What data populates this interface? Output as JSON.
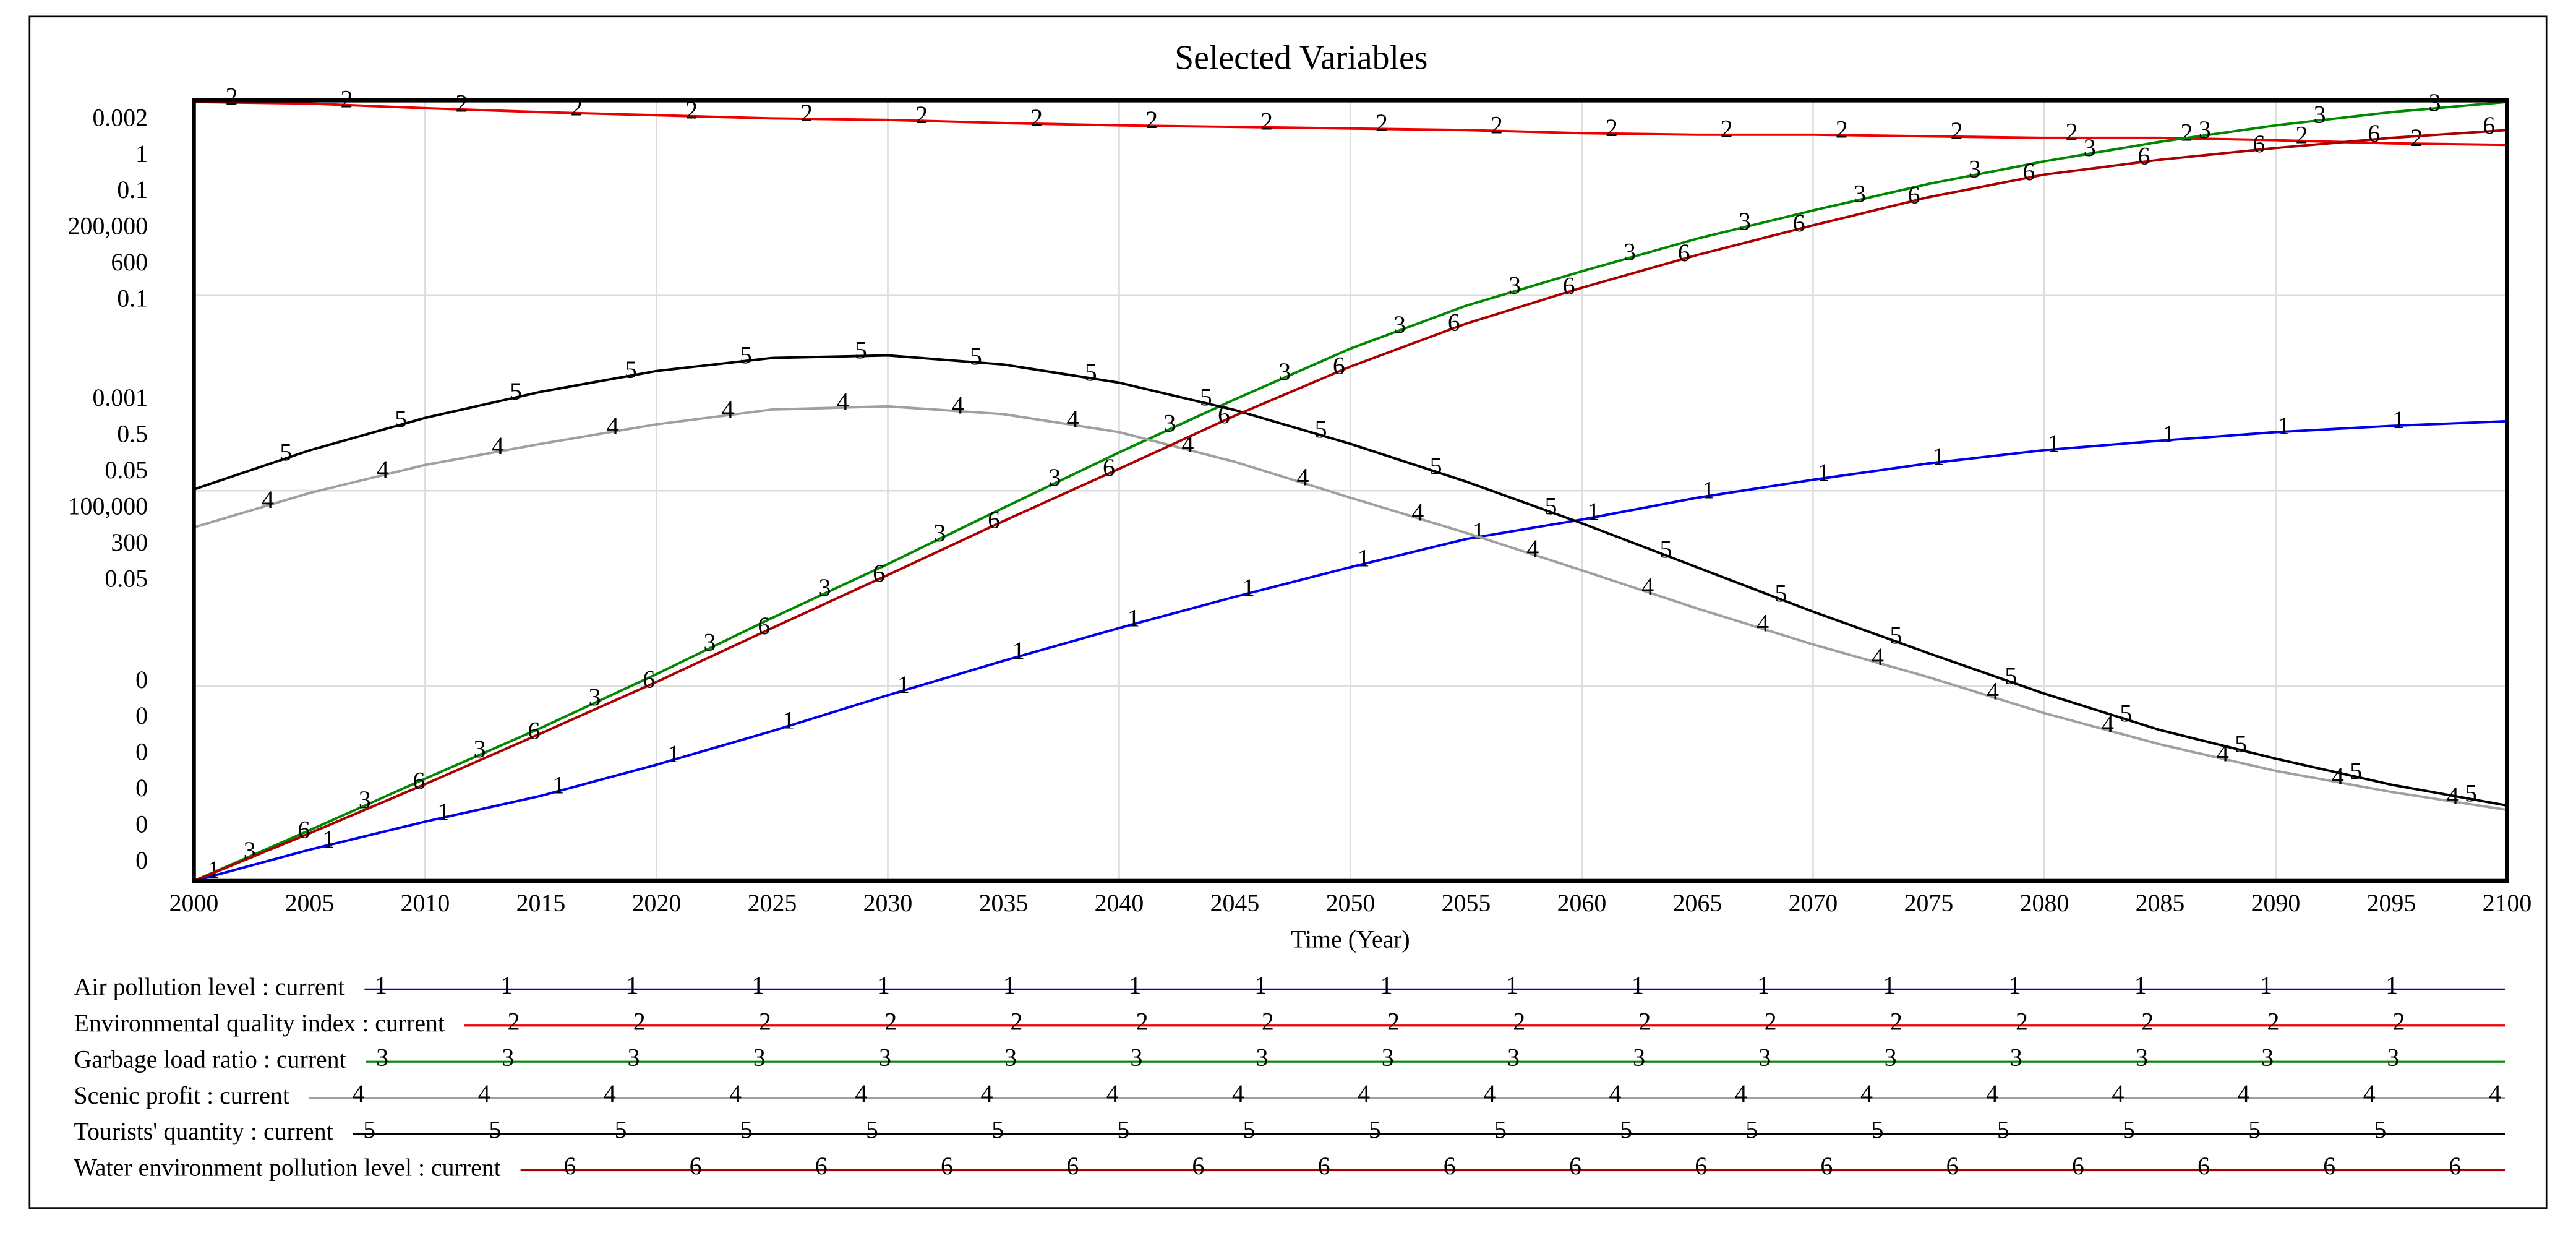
{
  "chart_data": {
    "type": "line",
    "title": "Selected Variables",
    "x_label": "Time (Year)",
    "x": [
      2000,
      2005,
      2010,
      2015,
      2020,
      2025,
      2030,
      2035,
      2040,
      2045,
      2050,
      2055,
      2060,
      2065,
      2070,
      2075,
      2080,
      2085,
      2090,
      2095,
      2100
    ],
    "xlim": [
      2000,
      2100
    ],
    "xticks": [
      2000,
      2005,
      2010,
      2015,
      2020,
      2025,
      2030,
      2035,
      2040,
      2045,
      2050,
      2055,
      2060,
      2065,
      2070,
      2075,
      2080,
      2085,
      2090,
      2095,
      2100
    ],
    "grid": true,
    "series": [
      {
        "name": "Air pollution level : current",
        "marker": "1",
        "color": "#0000ee",
        "ylim": [
          0,
          0.002
        ],
        "yticks": [
          0,
          0.001,
          0.002
        ],
        "values": [
          0,
          8e-05,
          0.000152,
          0.000218,
          0.000298,
          0.000384,
          0.000476,
          0.000564,
          0.000648,
          0.000728,
          0.000804,
          0.000876,
          0.000926,
          0.000982,
          0.001028,
          0.00107,
          0.001104,
          0.001128,
          0.00115,
          0.001166,
          0.001178
        ]
      },
      {
        "name": "Environmental quality index : current",
        "marker": "2",
        "color": "#ee0000",
        "ylim": [
          0,
          1
        ],
        "yticks": [
          0,
          0.5,
          1
        ],
        "values": [
          0.998,
          0.996,
          0.99,
          0.985,
          0.981,
          0.977,
          0.975,
          0.971,
          0.968,
          0.966,
          0.964,
          0.962,
          0.958,
          0.956,
          0.956,
          0.954,
          0.952,
          0.952,
          0.949,
          0.945,
          0.943
        ]
      },
      {
        "name": "Garbage load ratio : current",
        "marker": "3",
        "color": "#008800",
        "ylim": [
          0,
          0.1
        ],
        "yticks": [
          0,
          0.05,
          0.1
        ],
        "values": [
          0,
          0.0065,
          0.0131,
          0.0196,
          0.0265,
          0.0337,
          0.0406,
          0.0478,
          0.0549,
          0.0617,
          0.0682,
          0.0737,
          0.0781,
          0.0823,
          0.0859,
          0.0893,
          0.0922,
          0.0947,
          0.0968,
          0.0985,
          0.0998
        ]
      },
      {
        "name": "Scenic profit : current",
        "marker": "4",
        "color": "#a0a0a0",
        "ylim": [
          0,
          200000
        ],
        "yticks": [
          0,
          {
            "value": 100000,
            "label": "100,000"
          },
          {
            "value": 200000,
            "label": "200,000"
          }
        ],
        "values": [
          90600,
          99400,
          106600,
          112000,
          117000,
          120800,
          121600,
          119600,
          115000,
          107400,
          98200,
          89200,
          79600,
          69800,
          60600,
          52200,
          43000,
          35000,
          28200,
          22800,
          18200
        ]
      },
      {
        "name": "Tourists' quantity : current",
        "marker": "5",
        "color": "#000000",
        "ylim": [
          0,
          600
        ],
        "yticks": [
          0,
          300,
          600
        ],
        "values": [
          301,
          331,
          356,
          376,
          392,
          402,
          404,
          397,
          383,
          362,
          336,
          307,
          275,
          241,
          207,
          175,
          144,
          116,
          94,
          74,
          58
        ]
      },
      {
        "name": "Water environment pollution level : current",
        "marker": "6",
        "color": "#aa0000",
        "ylim": [
          0,
          0.1
        ],
        "yticks": [
          0,
          0.05,
          0.1
        ],
        "values": [
          0,
          0.0061,
          0.0124,
          0.0189,
          0.0255,
          0.0324,
          0.0392,
          0.0461,
          0.0528,
          0.0596,
          0.0659,
          0.0714,
          0.076,
          0.0802,
          0.084,
          0.0876,
          0.0905,
          0.0924,
          0.0939,
          0.0952,
          0.0962
        ]
      }
    ]
  }
}
